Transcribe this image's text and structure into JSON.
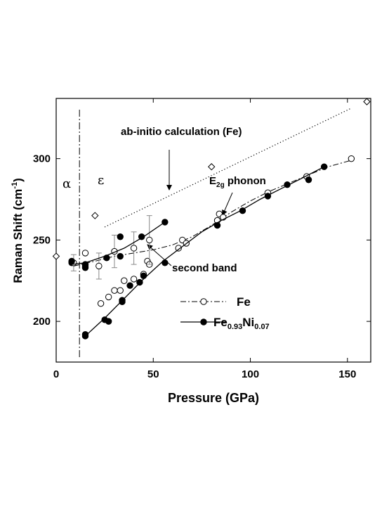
{
  "chart_data": {
    "type": "scatter",
    "xlabel": "Pressure (GPa)",
    "ylabel_main": "Raman Shift (cm",
    "ylabel_sup": "-1",
    "ylabel_close": ")",
    "xlim": [
      0,
      162
    ],
    "ylim": [
      175,
      337
    ],
    "xticks": [
      0,
      50,
      100,
      150
    ],
    "yticks": [
      200,
      250,
      300
    ],
    "grid": false,
    "legend_position": "lower-right",
    "series": [
      {
        "name": "Fe",
        "marker": "open-circle",
        "line": "dash-dot",
        "points": [
          [
            15,
            242
          ],
          [
            23,
            211
          ],
          [
            27,
            215
          ],
          [
            30,
            219
          ],
          [
            33,
            219
          ],
          [
            35,
            225
          ],
          [
            40,
            226
          ],
          [
            45,
            229
          ],
          [
            47,
            237
          ],
          [
            48,
            235
          ],
          [
            63,
            245
          ],
          [
            65,
            250
          ],
          [
            67,
            248
          ],
          [
            83,
            262
          ],
          [
            84,
            266
          ],
          [
            86,
            264
          ],
          [
            109,
            279
          ],
          [
            129,
            289
          ],
          [
            152,
            300
          ]
        ],
        "fit": [
          [
            9,
            234
          ],
          [
            20,
            237
          ],
          [
            30,
            240
          ],
          [
            40,
            242
          ],
          [
            50,
            244
          ],
          [
            60,
            247
          ],
          [
            70,
            252
          ],
          [
            80,
            259
          ],
          [
            90,
            267
          ],
          [
            100,
            274
          ],
          [
            110,
            280
          ],
          [
            120,
            285
          ],
          [
            130,
            290
          ],
          [
            140,
            295
          ],
          [
            152,
            299
          ]
        ]
      },
      {
        "name_main": "Fe",
        "name_sub": "0.93",
        "name_main2": "Ni",
        "name_sub2": "0.07",
        "marker": "filled-circle",
        "line": "solid",
        "points": [
          [
            8,
            236
          ],
          [
            15,
            233
          ],
          [
            15,
            235
          ],
          [
            15,
            191
          ],
          [
            15,
            192
          ],
          [
            25,
            201
          ],
          [
            27,
            200
          ],
          [
            34,
            213
          ],
          [
            34,
            212
          ],
          [
            38,
            222
          ],
          [
            43,
            224
          ],
          [
            45,
            228
          ],
          [
            56,
            236
          ],
          [
            83,
            259
          ],
          [
            96,
            268
          ],
          [
            109,
            277
          ],
          [
            119,
            284
          ],
          [
            130,
            287
          ],
          [
            138,
            295
          ]
        ],
        "fit": [
          [
            15,
            191
          ],
          [
            25,
            202
          ],
          [
            35,
            214
          ],
          [
            45,
            226
          ],
          [
            55,
            237
          ],
          [
            65,
            246
          ],
          [
            75,
            255
          ],
          [
            85,
            262
          ],
          [
            95,
            268
          ],
          [
            105,
            275
          ],
          [
            115,
            281
          ],
          [
            125,
            287
          ],
          [
            138,
            295
          ]
        ]
      },
      {
        "name": "second band",
        "marker": "open-circle",
        "error_bars": true,
        "points": [
          [
            9,
            236
          ],
          [
            22,
            234
          ],
          [
            30,
            243
          ],
          [
            40,
            245
          ],
          [
            48,
            250
          ]
        ],
        "errors": [
          5,
          8,
          10,
          10,
          15
        ]
      },
      {
        "name": "second band (Fe0.93Ni0.07)",
        "marker": "filled-circle",
        "points": [
          [
            8,
            237
          ],
          [
            15,
            234
          ],
          [
            26,
            239
          ],
          [
            33,
            240
          ],
          [
            33,
            252
          ],
          [
            44,
            252
          ],
          [
            56,
            261
          ]
        ],
        "fit": [
          [
            8,
            235
          ],
          [
            15,
            236
          ],
          [
            25,
            240
          ],
          [
            35,
            245
          ],
          [
            45,
            252
          ],
          [
            56,
            261
          ]
        ]
      },
      {
        "name": "ab-initio calculation (Fe)",
        "marker": "open-diamond",
        "line": "dotted",
        "points": [
          [
            0,
            240
          ],
          [
            20,
            265
          ],
          [
            80,
            295
          ],
          [
            160,
            335
          ]
        ],
        "fit": [
          [
            25,
            258
          ],
          [
            152,
            331
          ]
        ]
      }
    ],
    "annotations": {
      "alpha": "α",
      "epsilon": "ε",
      "ab_initio": "ab-initio calculation (Fe)",
      "e2g_main": "E",
      "e2g_sub": "2g",
      "e2g_rest": " phonon",
      "second_band": "second band",
      "phase_boundary_x": 12
    },
    "legend": {
      "fe": "Fe",
      "feni_main": "Fe",
      "feni_sub1": "0.93",
      "feni_mid": "Ni",
      "feni_sub2": "0.07"
    }
  }
}
